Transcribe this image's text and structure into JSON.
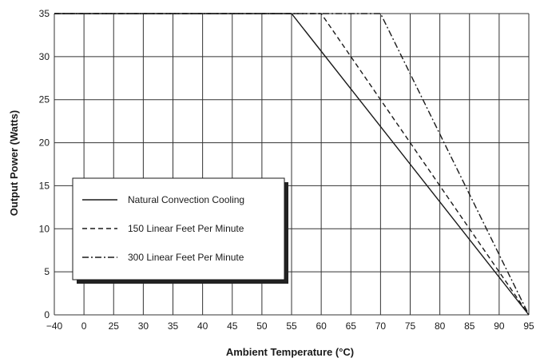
{
  "chart_data": {
    "type": "line",
    "title": "",
    "xlabel": "Ambient Temperature (°C)",
    "ylabel": "Output Power (Watts)",
    "x_ticks": [
      {
        "label": "−40",
        "value": -40
      },
      {
        "label": "0",
        "value": 0
      },
      {
        "label": "25",
        "value": 25
      },
      {
        "label": "30",
        "value": 30
      },
      {
        "label": "35",
        "value": 35
      },
      {
        "label": "40",
        "value": 40
      },
      {
        "label": "45",
        "value": 45
      },
      {
        "label": "50",
        "value": 50
      },
      {
        "label": "55",
        "value": 55
      },
      {
        "label": "60",
        "value": 60
      },
      {
        "label": "65",
        "value": 65
      },
      {
        "label": "70",
        "value": 70
      },
      {
        "label": "75",
        "value": 75
      },
      {
        "label": "80",
        "value": 80
      },
      {
        "label": "85",
        "value": 85
      },
      {
        "label": "90",
        "value": 90
      },
      {
        "label": "95",
        "value": 95
      }
    ],
    "y_ticks": [
      0,
      5,
      10,
      15,
      20,
      25,
      30,
      35
    ],
    "ylim": [
      0,
      35
    ],
    "grid": true,
    "legend_position": "lower-left",
    "series": [
      {
        "name": "Natural Convection Cooling",
        "style": "solid",
        "x": [
          -40,
          55,
          95
        ],
        "y": [
          35,
          35,
          0
        ]
      },
      {
        "name": "150 Linear Feet Per Minute",
        "style": "dashed",
        "x": [
          -40,
          60,
          95
        ],
        "y": [
          35,
          35,
          0
        ]
      },
      {
        "name": "300 Linear Feet Per Minute",
        "style": "dashdot",
        "x": [
          -40,
          70,
          95
        ],
        "y": [
          35,
          35,
          0
        ]
      }
    ],
    "colors": {
      "line": "#1a1a1a",
      "grid": "#333333",
      "background": "#ffffff"
    }
  }
}
